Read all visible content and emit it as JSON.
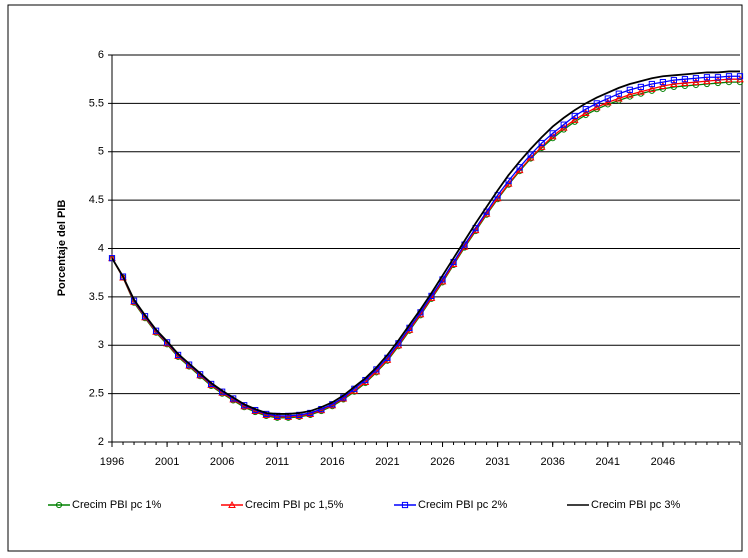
{
  "chart_data": {
    "type": "line",
    "y_label": "Porcentaje del PIB",
    "x": [
      1996,
      1997,
      1998,
      1999,
      2000,
      2001,
      2002,
      2003,
      2004,
      2005,
      2006,
      2007,
      2008,
      2009,
      2010,
      2011,
      2012,
      2013,
      2014,
      2015,
      2016,
      2017,
      2018,
      2019,
      2020,
      2021,
      2022,
      2023,
      2024,
      2025,
      2026,
      2027,
      2028,
      2029,
      2030,
      2031,
      2032,
      2033,
      2034,
      2035,
      2036,
      2037,
      2038,
      2039,
      2040,
      2041,
      2042,
      2043,
      2044,
      2045,
      2046,
      2047,
      2048,
      2049,
      2050,
      2051,
      2052,
      2053
    ],
    "xlim": [
      1996,
      2053
    ],
    "xticks": [
      1996,
      2001,
      2006,
      2011,
      2016,
      2021,
      2026,
      2031,
      2036,
      2041,
      2046
    ],
    "ylim": [
      2,
      6
    ],
    "yticks": [
      2,
      2.5,
      3,
      3.5,
      4,
      4.5,
      5,
      5.5,
      6
    ],
    "grid": true,
    "legend": "bottom",
    "series": [
      {
        "name": "Crecim PBI pc 1%",
        "color": "#008000",
        "marker": "circle",
        "values": [
          3.9,
          3.7,
          3.44,
          3.28,
          3.13,
          3.01,
          2.88,
          2.78,
          2.68,
          2.58,
          2.5,
          2.43,
          2.36,
          2.31,
          2.27,
          2.25,
          2.25,
          2.26,
          2.28,
          2.32,
          2.37,
          2.44,
          2.52,
          2.61,
          2.72,
          2.84,
          2.99,
          3.15,
          3.31,
          3.48,
          3.65,
          3.83,
          4.01,
          4.18,
          4.35,
          4.51,
          4.66,
          4.8,
          4.93,
          5.04,
          5.14,
          5.23,
          5.31,
          5.38,
          5.44,
          5.49,
          5.53,
          5.57,
          5.6,
          5.63,
          5.65,
          5.67,
          5.68,
          5.69,
          5.7,
          5.71,
          5.72,
          5.72
        ]
      },
      {
        "name": "Crecim PBI pc 1,5%",
        "color": "#ff0000",
        "marker": "triangle",
        "values": [
          3.9,
          3.7,
          3.45,
          3.29,
          3.14,
          3.02,
          2.89,
          2.79,
          2.69,
          2.59,
          2.51,
          2.44,
          2.37,
          2.32,
          2.28,
          2.26,
          2.26,
          2.27,
          2.29,
          2.33,
          2.38,
          2.45,
          2.53,
          2.62,
          2.73,
          2.85,
          3.0,
          3.16,
          3.32,
          3.49,
          3.66,
          3.84,
          4.02,
          4.19,
          4.36,
          4.52,
          4.67,
          4.81,
          4.94,
          5.05,
          5.16,
          5.25,
          5.33,
          5.4,
          5.46,
          5.51,
          5.55,
          5.59,
          5.62,
          5.65,
          5.68,
          5.7,
          5.71,
          5.72,
          5.73,
          5.74,
          5.75,
          5.75
        ]
      },
      {
        "name": "Crecim PBI pc 2%",
        "color": "#0000ff",
        "marker": "square",
        "values": [
          3.9,
          3.71,
          3.46,
          3.3,
          3.15,
          3.03,
          2.9,
          2.8,
          2.7,
          2.6,
          2.52,
          2.45,
          2.38,
          2.33,
          2.29,
          2.27,
          2.27,
          2.28,
          2.3,
          2.34,
          2.39,
          2.46,
          2.55,
          2.64,
          2.75,
          2.87,
          3.02,
          3.18,
          3.34,
          3.51,
          3.68,
          3.86,
          4.04,
          4.21,
          4.38,
          4.55,
          4.7,
          4.84,
          4.97,
          5.09,
          5.19,
          5.28,
          5.37,
          5.44,
          5.5,
          5.55,
          5.6,
          5.64,
          5.67,
          5.7,
          5.72,
          5.74,
          5.75,
          5.76,
          5.77,
          5.77,
          5.78,
          5.78
        ]
      },
      {
        "name": "Crecim PBI pc 3%",
        "color": "#000000",
        "marker": "none",
        "values": [
          3.9,
          3.71,
          3.47,
          3.31,
          3.16,
          3.04,
          2.91,
          2.81,
          2.71,
          2.61,
          2.53,
          2.46,
          2.39,
          2.34,
          2.3,
          2.29,
          2.29,
          2.3,
          2.32,
          2.36,
          2.41,
          2.48,
          2.57,
          2.66,
          2.77,
          2.9,
          3.05,
          3.21,
          3.37,
          3.54,
          3.72,
          3.9,
          4.08,
          4.26,
          4.43,
          4.6,
          4.76,
          4.9,
          5.03,
          5.15,
          5.26,
          5.35,
          5.43,
          5.5,
          5.56,
          5.61,
          5.66,
          5.7,
          5.73,
          5.76,
          5.78,
          5.79,
          5.8,
          5.81,
          5.82,
          5.82,
          5.83,
          5.83
        ]
      }
    ]
  }
}
